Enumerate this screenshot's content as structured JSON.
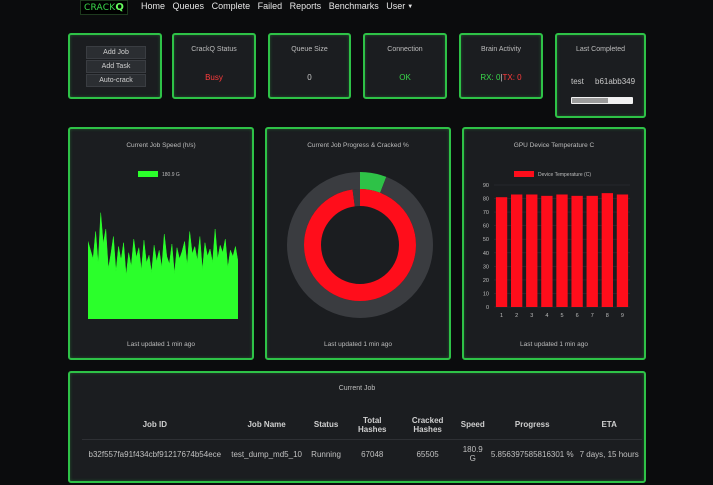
{
  "nav": {
    "brand_prefix": "CRACK",
    "brand_suffix": "Q",
    "items": [
      "Home",
      "Queues",
      "Complete",
      "Failed",
      "Reports",
      "Benchmarks",
      "User"
    ]
  },
  "actions": {
    "add_job": "Add Job",
    "add_task": "Add Task",
    "auto_crack": "Auto-crack"
  },
  "status_cards": {
    "crackq_status": {
      "title": "CrackQ Status",
      "value": "Busy"
    },
    "queue_size": {
      "title": "Queue Size",
      "value": "0"
    },
    "connection": {
      "title": "Connection",
      "value": "OK"
    },
    "brain_activity": {
      "title": "Brain Activity",
      "rx": "RX: 0",
      "sep": "|",
      "tx": "TX: 0"
    },
    "last_completed": {
      "title": "Last Completed",
      "name": "test",
      "hash": "b61abb349",
      "progress": 0.6
    }
  },
  "colors": {
    "accent": "#2ec247",
    "busy": "#ff3b3b",
    "ok": "#39d84a",
    "cracked": "#ff0d1b",
    "remaining": "#3a3c40",
    "speed": "#2bff2b"
  },
  "speed_chart": {
    "title": "Current Job Speed (h/s)",
    "updated": "Last updated 1 min ago",
    "chart_data": {
      "type": "area",
      "series": [
        {
          "name": "180.9 G",
          "values": [
            62,
            55,
            48,
            70,
            44,
            85,
            60,
            72,
            40,
            52,
            66,
            38,
            58,
            47,
            61,
            35,
            53,
            42,
            64,
            49,
            57,
            39,
            63,
            45,
            51,
            37,
            59,
            46,
            55,
            41,
            68,
            50,
            44,
            60,
            36,
            57,
            48,
            54,
            62,
            43,
            70,
            52,
            58,
            47,
            66,
            39,
            61,
            50,
            56,
            45,
            72,
            48,
            59,
            53,
            64,
            41,
            55,
            50,
            58,
            46
          ]
        }
      ]
    }
  },
  "progress_chart": {
    "title": "Current Job Progress & Cracked %",
    "updated": "Last updated 1 min ago",
    "chart_data": {
      "type": "pie",
      "rings": [
        {
          "name": "progress",
          "values": [
            5.86,
            94.14
          ]
        },
        {
          "name": "cracked",
          "values": [
            97.7,
            2.3
          ]
        }
      ]
    }
  },
  "gpu_chart": {
    "title": "GPU Device Temperature C",
    "updated": "Last updated 1 min ago",
    "chart_data": {
      "type": "bar",
      "categories": [
        "1",
        "2",
        "3",
        "4",
        "5",
        "6",
        "7",
        "8",
        "9"
      ],
      "series": [
        {
          "name": "Device Temperature (C)",
          "values": [
            81,
            83,
            83,
            82,
            83,
            82,
            82,
            84,
            83
          ]
        }
      ],
      "ylim": [
        0,
        90
      ],
      "yticks": [
        "0",
        "10",
        "20",
        "30",
        "40",
        "50",
        "60",
        "70",
        "80",
        "90"
      ]
    }
  },
  "current_job": {
    "title": "Current Job",
    "headers": [
      "Job ID",
      "Job Name",
      "Status",
      "Total Hashes",
      "Cracked Hashes",
      "Speed",
      "Progress",
      "ETA"
    ],
    "row": [
      "b32f557fa91f434cbf91217674b54ece",
      "test_dump_md5_10",
      "Running",
      "67048",
      "65505",
      "180.9 G",
      "5.856397585816301 %",
      "7 days, 15 hours"
    ]
  }
}
